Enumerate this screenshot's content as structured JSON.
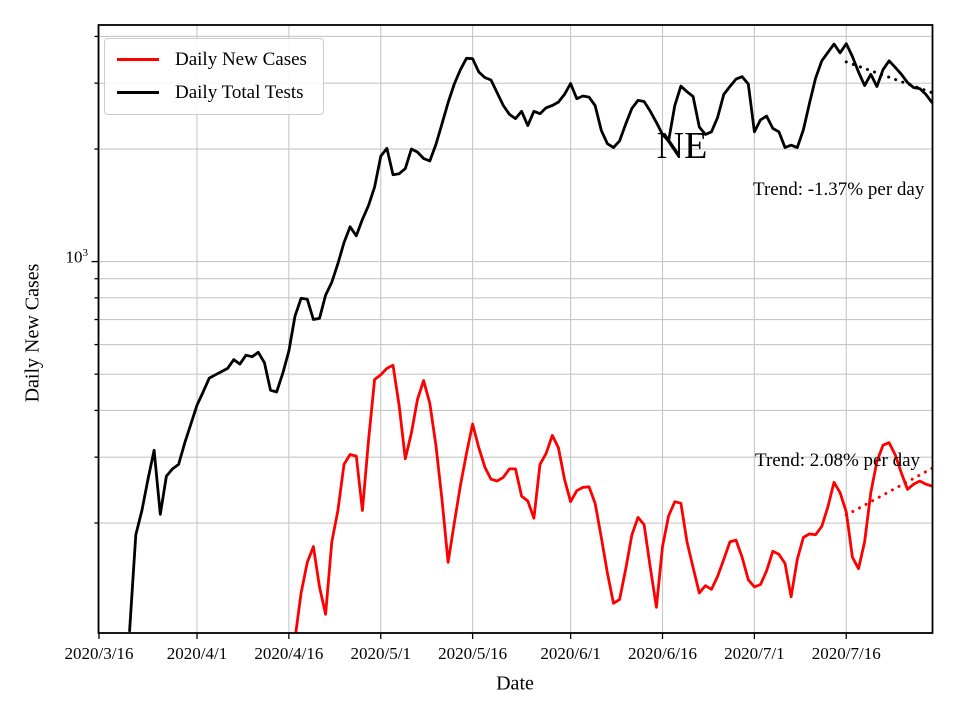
{
  "axes": {
    "xlabel": "Date",
    "ylabel": "Daily New Cases",
    "y_major_tick": {
      "base": "10",
      "exponent": "3"
    }
  },
  "annotations": {
    "state_label": "NE",
    "tests_trend": "Trend: -1.37% per day",
    "cases_trend": "Trend: 2.08% per day"
  },
  "legend": {
    "position": "upper left",
    "items": [
      {
        "label": "Daily New Cases",
        "color": "#ff0000"
      },
      {
        "label": "Daily Total Tests",
        "color": "#000000"
      }
    ]
  },
  "colors": {
    "cases": "#ff0000",
    "tests": "#000000",
    "grid": "#c7c7c7",
    "spine": "#000000"
  },
  "chart_data": {
    "type": "line",
    "title": "",
    "xlabel": "Date",
    "ylabel": "Daily New Cases",
    "yscale": "log",
    "ylim": [
      102,
      4300
    ],
    "xlim": [
      "2020/3/16",
      "2020/7/30"
    ],
    "grid": true,
    "legend_position": "upper left",
    "x_tick_labels": [
      "2020/3/16",
      "2020/4/1",
      "2020/4/16",
      "2020/5/1",
      "2020/5/16",
      "2020/6/1",
      "2020/6/16",
      "2020/7/1",
      "2020/7/16"
    ],
    "y_grid_values": [
      200,
      300,
      400,
      500,
      600,
      700,
      800,
      900,
      1000,
      2000,
      3000,
      4000
    ],
    "y_major_value": 1000,
    "series": [
      {
        "name": "Daily New Cases",
        "color": "#ff0000",
        "start_date": "2020/4/17",
        "values": [
          98,
          130,
          157,
          173,
          135,
          114,
          178,
          216,
          287,
          305,
          302,
          216,
          332,
          484,
          498,
          518,
          528,
          413,
          297,
          348,
          428,
          481,
          418,
          323,
          231,
          157,
          200,
          252,
          307,
          368,
          318,
          282,
          262,
          259,
          265,
          279,
          279,
          236,
          229,
          206,
          287,
          307,
          343,
          318,
          262,
          228,
          244,
          249,
          250,
          226,
          183,
          147,
          122,
          125,
          151,
          186,
          207,
          198,
          152,
          119,
          173,
          209,
          228,
          226,
          178,
          152,
          130,
          136,
          133,
          144,
          160,
          178,
          180,
          162,
          141,
          135,
          137,
          149,
          168,
          165,
          156,
          127,
          160,
          183,
          187,
          186,
          196,
          221,
          257,
          241,
          214,
          162,
          151,
          178,
          241,
          292,
          323,
          328,
          304,
          272,
          246,
          254,
          259,
          254,
          251
        ]
      },
      {
        "name": "Daily Total Tests",
        "color": "#000000",
        "start_date": "2020/3/21",
        "values": [
          103,
          186,
          216,
          262,
          313,
          211,
          267,
          279,
          287,
          328,
          368,
          413,
          448,
          488,
          498,
          508,
          518,
          547,
          532,
          562,
          557,
          572,
          537,
          453,
          448,
          503,
          577,
          715,
          798,
          793,
          700,
          705,
          813,
          881,
          988,
          1124,
          1239,
          1172,
          1297,
          1412,
          1583,
          1915,
          2009,
          1707,
          1717,
          1773,
          2000,
          1962,
          1886,
          1858,
          2056,
          2336,
          2661,
          2984,
          3259,
          3497,
          3488,
          3214,
          3104,
          3058,
          2828,
          2615,
          2477,
          2412,
          2523,
          2310,
          2523,
          2486,
          2578,
          2615,
          2670,
          2800,
          2993,
          2726,
          2772,
          2754,
          2615,
          2243,
          2066,
          2019,
          2103,
          2336,
          2569,
          2698,
          2680,
          2523,
          2356,
          2187,
          2103,
          2615,
          2947,
          2846,
          2763,
          2290,
          2187,
          2224,
          2430,
          2800,
          2938,
          3076,
          3122,
          2984,
          2224,
          2393,
          2449,
          2271,
          2224,
          2019,
          2047,
          2019,
          2252,
          2652,
          3094,
          3443,
          3625,
          3816,
          3616,
          3825,
          3534,
          3214,
          2956,
          3168,
          2938,
          3259,
          3443,
          3305,
          3168,
          3012,
          2920,
          2902,
          2800,
          2661
        ]
      }
    ],
    "trend_lines": [
      {
        "name": "tests-trend",
        "label": "Trend: -1.37% per day",
        "color": "#000000",
        "start": {
          "date": "2020/7/16",
          "value": 3420
        },
        "end": {
          "date": "2020/7/30",
          "value": 2830
        }
      },
      {
        "name": "cases-trend",
        "label": "Trend: 2.08% per day",
        "color": "#ff0000",
        "start": {
          "date": "2020/7/16",
          "value": 210
        },
        "end": {
          "date": "2020/7/30",
          "value": 280
        }
      }
    ]
  }
}
